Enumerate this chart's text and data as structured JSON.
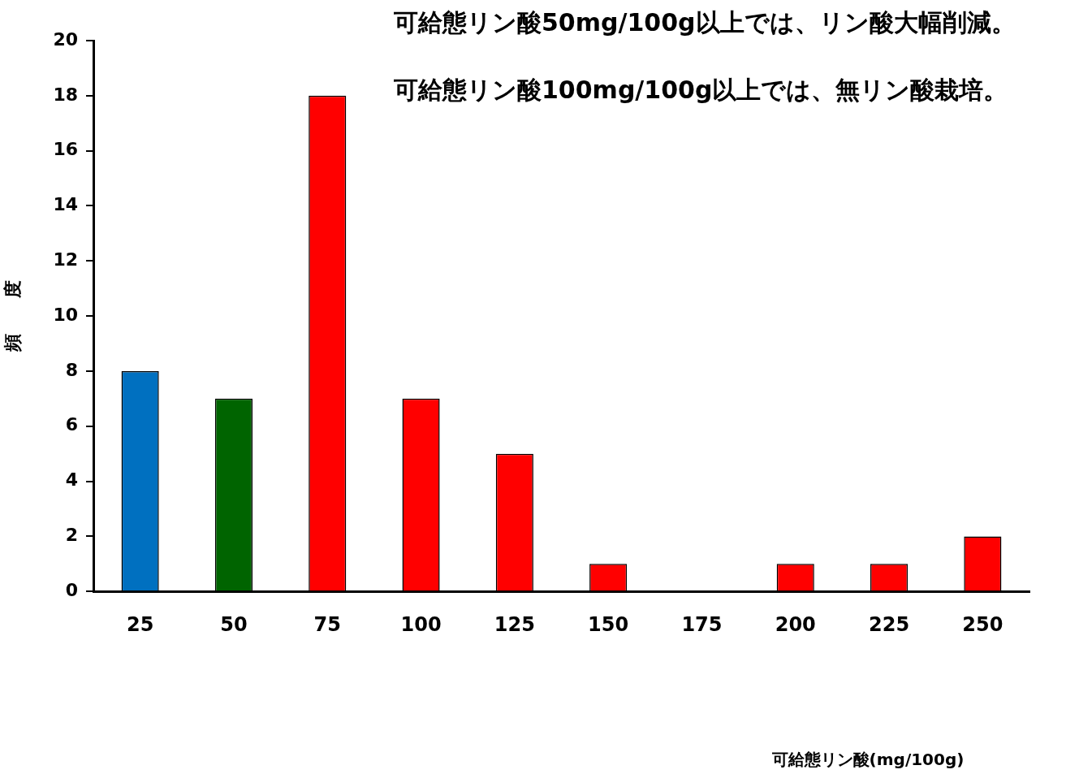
{
  "chart_data": {
    "type": "bar",
    "ylabel": "頻　　度",
    "annotations": [
      "可給態リン酸50mg/100g以上では、リン酸大幅削減。",
      "可給態リン酸100mg/100g以上では、無リン酸栽培。",
      "可給態リン酸(mg/100g)"
    ],
    "categories": [
      "25",
      "50",
      "75",
      "100",
      "125",
      "150",
      "175",
      "200",
      "225",
      "250"
    ],
    "values": [
      8,
      7,
      18,
      7,
      5,
      1,
      0,
      1,
      1,
      2
    ],
    "colors": [
      "#0070c0",
      "#006400",
      "#ff0000",
      "#ff0000",
      "#ff0000",
      "#ff0000",
      "#ff0000",
      "#ff0000",
      "#ff0000",
      "#ff0000"
    ],
    "ylim": [
      0,
      20
    ],
    "yticks": [
      0,
      2,
      4,
      6,
      8,
      10,
      12,
      14,
      16,
      18,
      20
    ]
  }
}
